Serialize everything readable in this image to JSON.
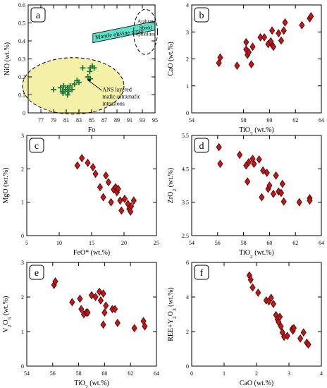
{
  "chart_data": [
    {
      "panel_label": "a",
      "type": "scatter",
      "xlabel": "Fo",
      "ylabel": "NiO (wt.%)",
      "xlim": [
        75,
        95
      ],
      "ylim": [
        0,
        0.6
      ],
      "xticks": [
        "77",
        "79",
        "81",
        "83",
        "85",
        "87",
        "89",
        "91",
        "93",
        "95"
      ],
      "yticks": [
        "0",
        "0.1",
        "0.2",
        "0.3",
        "0.4",
        "0.5",
        "0.6"
      ],
      "marker": "plus",
      "marker_color": "#1f7a3a",
      "points": [
        {
          "x": 79.0,
          "y": 0.13
        },
        {
          "x": 80.1,
          "y": 0.14
        },
        {
          "x": 80.4,
          "y": 0.12
        },
        {
          "x": 80.6,
          "y": 0.15
        },
        {
          "x": 80.9,
          "y": 0.13
        },
        {
          "x": 81.2,
          "y": 0.14
        },
        {
          "x": 81.4,
          "y": 0.12
        },
        {
          "x": 81.6,
          "y": 0.15
        },
        {
          "x": 81.9,
          "y": 0.13
        },
        {
          "x": 82.3,
          "y": 0.16
        },
        {
          "x": 82.7,
          "y": 0.18
        },
        {
          "x": 83.0,
          "y": 0.17
        },
        {
          "x": 83.6,
          "y": 0.25
        },
        {
          "x": 84.4,
          "y": 0.2
        },
        {
          "x": 84.7,
          "y": 0.23
        },
        {
          "x": 84.8,
          "y": 0.19
        },
        {
          "x": 84.8,
          "y": 0.25
        },
        {
          "x": 85.1,
          "y": 0.26
        },
        {
          "x": 85.4,
          "y": 0.25
        },
        {
          "x": 81.2,
          "y": 0.1
        },
        {
          "x": 80.5,
          "y": 0.11
        }
      ],
      "annotations": [
        "Mantle olivine array",
        "Arabian Shield ophiolites",
        "ANS layered mafic-ultramafic intrusions"
      ],
      "colors": {
        "olivine_band": "#5fe0c8",
        "ans_field": "#f5f0a8",
        "marker": "#1f7a3a"
      }
    },
    {
      "panel_label": "b",
      "type": "scatter",
      "xlabel": "TiO2 (wt.%)",
      "ylabel": "CaO (wt.%)",
      "xlim": [
        54,
        64
      ],
      "ylim": [
        0,
        4
      ],
      "xticks": [
        "54",
        "58",
        "60",
        "62",
        "64"
      ],
      "yticks": [
        "0",
        "1",
        "2",
        "3",
        "4"
      ],
      "marker": "diamond",
      "points": [
        {
          "x": 56.1,
          "y": 1.85
        },
        {
          "x": 56.2,
          "y": 2.05
        },
        {
          "x": 57.5,
          "y": 1.75
        },
        {
          "x": 58.2,
          "y": 2.35
        },
        {
          "x": 58.3,
          "y": 2.15
        },
        {
          "x": 58.4,
          "y": 2.25
        },
        {
          "x": 58.7,
          "y": 2.45
        },
        {
          "x": 58.2,
          "y": 2.62
        },
        {
          "x": 58.6,
          "y": 1.8
        },
        {
          "x": 59.3,
          "y": 2.8
        },
        {
          "x": 59.6,
          "y": 2.8
        },
        {
          "x": 59.9,
          "y": 2.55
        },
        {
          "x": 60.2,
          "y": 2.52
        },
        {
          "x": 60.1,
          "y": 2.65
        },
        {
          "x": 60.3,
          "y": 2.45
        },
        {
          "x": 60.2,
          "y": 3.05
        },
        {
          "x": 60.7,
          "y": 2.95
        },
        {
          "x": 60.9,
          "y": 2.68
        },
        {
          "x": 61.1,
          "y": 3.05
        },
        {
          "x": 61.2,
          "y": 3.35
        },
        {
          "x": 62.5,
          "y": 3.25
        },
        {
          "x": 63.1,
          "y": 3.5
        },
        {
          "x": 63.2,
          "y": 3.58
        }
      ]
    },
    {
      "panel_label": "c",
      "type": "scatter",
      "xlabel": "FeO* (wt.%)",
      "ylabel": "MgO (wt.%)",
      "xlim": [
        5,
        25
      ],
      "ylim": [
        0,
        3
      ],
      "xticks": [
        "5",
        "10",
        "15",
        "20",
        "25"
      ],
      "yticks": [
        "0",
        "1",
        "2",
        "3"
      ],
      "marker": "diamond",
      "points": [
        {
          "x": 12.8,
          "y": 2.1
        },
        {
          "x": 13.5,
          "y": 2.32
        },
        {
          "x": 14.4,
          "y": 2.18
        },
        {
          "x": 15.2,
          "y": 2.05
        },
        {
          "x": 15.6,
          "y": 1.85
        },
        {
          "x": 16.3,
          "y": 1.45
        },
        {
          "x": 16.8,
          "y": 1.15
        },
        {
          "x": 17.2,
          "y": 1.8
        },
        {
          "x": 17.6,
          "y": 1.6
        },
        {
          "x": 18.0,
          "y": 1.0
        },
        {
          "x": 18.4,
          "y": 1.38
        },
        {
          "x": 18.7,
          "y": 1.45
        },
        {
          "x": 18.9,
          "y": 1.3
        },
        {
          "x": 19.1,
          "y": 1.4
        },
        {
          "x": 19.4,
          "y": 1.05
        },
        {
          "x": 19.6,
          "y": 0.75
        },
        {
          "x": 20.1,
          "y": 1.1
        },
        {
          "x": 20.6,
          "y": 0.95
        },
        {
          "x": 20.8,
          "y": 0.8
        },
        {
          "x": 21.1,
          "y": 0.88
        },
        {
          "x": 21.5,
          "y": 1.05
        },
        {
          "x": 21.0,
          "y": 0.72
        }
      ]
    },
    {
      "panel_label": "d",
      "type": "scatter",
      "xlabel": "TiO2 (wt.%)",
      "ylabel": "ZrO2 (wt.%)",
      "xlim": [
        54,
        64
      ],
      "ylim": [
        2.5,
        5.5
      ],
      "xticks": [
        "54",
        "56",
        "58",
        "60",
        "62",
        "64"
      ],
      "yticks": [
        "2.5",
        "3.5",
        "4.5",
        "5.5"
      ],
      "marker": "diamond",
      "points": [
        {
          "x": 56.1,
          "y": 5.15
        },
        {
          "x": 56.2,
          "y": 4.65
        },
        {
          "x": 57.7,
          "y": 4.92
        },
        {
          "x": 58.2,
          "y": 4.6
        },
        {
          "x": 58.3,
          "y": 4.12
        },
        {
          "x": 58.4,
          "y": 4.7
        },
        {
          "x": 58.7,
          "y": 4.8
        },
        {
          "x": 58.8,
          "y": 4.65
        },
        {
          "x": 59.2,
          "y": 4.78
        },
        {
          "x": 59.5,
          "y": 4.45
        },
        {
          "x": 59.8,
          "y": 4.38
        },
        {
          "x": 59.4,
          "y": 3.65
        },
        {
          "x": 59.9,
          "y": 3.9
        },
        {
          "x": 60.0,
          "y": 4.0
        },
        {
          "x": 60.3,
          "y": 3.75
        },
        {
          "x": 60.5,
          "y": 4.3
        },
        {
          "x": 60.7,
          "y": 3.82
        },
        {
          "x": 60.9,
          "y": 3.78
        },
        {
          "x": 61.0,
          "y": 4.05
        },
        {
          "x": 61.1,
          "y": 3.52
        },
        {
          "x": 62.3,
          "y": 3.5
        },
        {
          "x": 63.1,
          "y": 3.62
        },
        {
          "x": 63.1,
          "y": 3.55
        }
      ]
    },
    {
      "panel_label": "e",
      "type": "scatter",
      "xlabel": "TiO2 (wt.%)",
      "ylabel": "V2O5 (wt.%)",
      "xlim": [
        54,
        64
      ],
      "ylim": [
        0,
        3
      ],
      "xticks": [
        "54",
        "56",
        "58",
        "60",
        "62",
        "64"
      ],
      "yticks": [
        "0",
        "1",
        "2",
        "3"
      ],
      "marker": "diamond",
      "points": [
        {
          "x": 56.1,
          "y": 2.35
        },
        {
          "x": 56.2,
          "y": 2.45
        },
        {
          "x": 57.5,
          "y": 1.85
        },
        {
          "x": 58.1,
          "y": 1.95
        },
        {
          "x": 58.2,
          "y": 1.65
        },
        {
          "x": 58.4,
          "y": 1.5
        },
        {
          "x": 58.6,
          "y": 1.55
        },
        {
          "x": 58.7,
          "y": 1.55
        },
        {
          "x": 59.0,
          "y": 2.05
        },
        {
          "x": 59.3,
          "y": 2.0
        },
        {
          "x": 59.6,
          "y": 2.15
        },
        {
          "x": 59.7,
          "y": 1.9
        },
        {
          "x": 59.9,
          "y": 2.1
        },
        {
          "x": 60.0,
          "y": 1.55
        },
        {
          "x": 60.1,
          "y": 1.75
        },
        {
          "x": 60.6,
          "y": 1.65
        },
        {
          "x": 60.8,
          "y": 1.65
        },
        {
          "x": 61.0,
          "y": 1.25
        },
        {
          "x": 62.3,
          "y": 1.1
        },
        {
          "x": 63.0,
          "y": 1.3
        },
        {
          "x": 63.1,
          "y": 1.15
        },
        {
          "x": 59.9,
          "y": 1.2
        }
      ]
    },
    {
      "panel_label": "f",
      "type": "scatter",
      "xlabel": "CaO (wt.%)",
      "ylabel": "REE+Y2O3 (wt.%)",
      "xlim": [
        0,
        4
      ],
      "ylim": [
        0,
        6
      ],
      "xticks": [
        "0",
        "1",
        "2",
        "3",
        "4"
      ],
      "yticks": [
        "0",
        "2",
        "4",
        "6"
      ],
      "marker": "diamond",
      "points": [
        {
          "x": 1.78,
          "y": 5.25
        },
        {
          "x": 1.82,
          "y": 5.0
        },
        {
          "x": 1.88,
          "y": 4.55
        },
        {
          "x": 2.05,
          "y": 4.25
        },
        {
          "x": 2.3,
          "y": 3.8
        },
        {
          "x": 2.38,
          "y": 3.75
        },
        {
          "x": 2.45,
          "y": 3.95
        },
        {
          "x": 2.52,
          "y": 3.6
        },
        {
          "x": 2.6,
          "y": 2.95
        },
        {
          "x": 2.65,
          "y": 2.7
        },
        {
          "x": 2.68,
          "y": 2.55
        },
        {
          "x": 2.72,
          "y": 2.85
        },
        {
          "x": 2.75,
          "y": 2.3
        },
        {
          "x": 2.8,
          "y": 1.95
        },
        {
          "x": 2.85,
          "y": 1.7
        },
        {
          "x": 2.95,
          "y": 1.75
        },
        {
          "x": 3.1,
          "y": 2.15
        },
        {
          "x": 3.12,
          "y": 2.05
        },
        {
          "x": 3.15,
          "y": 2.2
        },
        {
          "x": 3.35,
          "y": 1.6
        },
        {
          "x": 3.45,
          "y": 1.95
        },
        {
          "x": 3.55,
          "y": 1.35
        },
        {
          "x": 3.6,
          "y": 1.25
        }
      ]
    }
  ],
  "colors": {
    "diamond_fill": "#c01818",
    "diamond_stroke": "#3a0606",
    "axis": "#000000"
  }
}
